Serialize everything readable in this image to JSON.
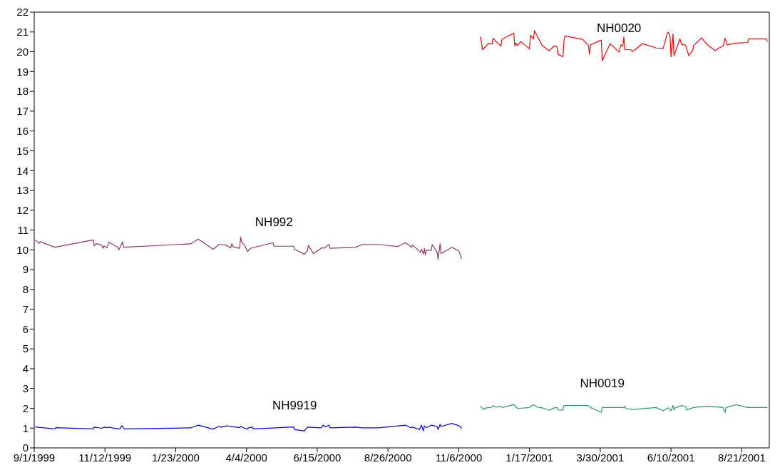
{
  "chart_data": {
    "type": "line",
    "xlim": [
      "1999-09-01",
      "2001-09-18"
    ],
    "xticks": [
      {
        "value": "1999-09-01",
        "label": "9/1/1999"
      },
      {
        "value": "1999-11-12",
        "label": "11/12/1999"
      },
      {
        "value": "2000-01-23",
        "label": "1/23/2000"
      },
      {
        "value": "2000-04-04",
        "label": "4/4/2000"
      },
      {
        "value": "2000-06-15",
        "label": "6/15/2000"
      },
      {
        "value": "2000-08-26",
        "label": "8/26/2000"
      },
      {
        "value": "2000-11-06",
        "label": "11/6/2000"
      },
      {
        "value": "2001-01-17",
        "label": "1/17/2001"
      },
      {
        "value": "2001-03-30",
        "label": "3/30/2001"
      },
      {
        "value": "2001-06-10",
        "label": "6/10/2001"
      },
      {
        "value": "2001-08-21",
        "label": "8/21/2001"
      }
    ],
    "ylim": [
      0,
      22
    ],
    "yticks": [
      0,
      1,
      2,
      3,
      4,
      5,
      6,
      7,
      8,
      9,
      10,
      11,
      12,
      13,
      14,
      15,
      16,
      17,
      18,
      19,
      20,
      21,
      22
    ],
    "grid": false,
    "legend": false,
    "marker": "none",
    "line_style": "solid",
    "series": [
      {
        "name": "NH992",
        "color": "#993366",
        "x": [
          "1999-09-02",
          "1999-09-06",
          "1999-09-07",
          "1999-09-22",
          "1999-10-31",
          "1999-11-01",
          "1999-11-03",
          "1999-11-08",
          "1999-11-10",
          "1999-11-11",
          "1999-11-14",
          "1999-11-16",
          "1999-11-25",
          "1999-11-26",
          "1999-11-30",
          "1999-12-01",
          "2000-02-07",
          "2000-02-15",
          "2000-02-23",
          "2000-03-01",
          "2000-03-07",
          "2000-03-14",
          "2000-03-19",
          "2000-03-20",
          "2000-03-22",
          "2000-03-28",
          "2000-03-29",
          "2000-03-30",
          "2000-04-02",
          "2000-04-05",
          "2000-04-08",
          "2000-04-10",
          "2000-05-01",
          "2000-05-02",
          "2000-05-22",
          "2000-05-23",
          "2000-06-02",
          "2000-06-05",
          "2000-06-06",
          "2000-06-11",
          "2000-06-20",
          "2000-06-22",
          "2000-06-27",
          "2000-06-28",
          "2000-07-24",
          "2000-07-31",
          "2000-08-16",
          "2000-09-05",
          "2000-09-13",
          "2000-09-19",
          "2000-09-20",
          "2000-09-28",
          "2000-09-29",
          "2000-10-01",
          "2000-10-02",
          "2000-10-03",
          "2000-10-04",
          "2000-10-09",
          "2000-10-10",
          "2000-10-15",
          "2000-10-16",
          "2000-10-18",
          "2000-10-19",
          "2000-10-30",
          "2000-11-06",
          "2000-11-09"
        ],
        "values": [
          10.5,
          10.33,
          10.41,
          10.13,
          10.5,
          10.2,
          10.31,
          10.26,
          10.08,
          10.2,
          10.1,
          10.39,
          10.13,
          9.99,
          10.4,
          10.13,
          10.3,
          10.54,
          10.27,
          10.03,
          10.27,
          10.24,
          10.1,
          10.31,
          10.13,
          10.08,
          10.65,
          10.39,
          10.24,
          9.92,
          10.07,
          10.1,
          10.36,
          10.18,
          10.18,
          10.03,
          9.78,
          9.95,
          10.23,
          9.81,
          10.11,
          10.08,
          10.27,
          10.08,
          10.13,
          10.27,
          10.27,
          10.17,
          10.36,
          10.13,
          10.24,
          9.88,
          10.03,
          9.78,
          10.07,
          9.74,
          9.98,
          9.98,
          10.27,
          9.88,
          9.52,
          10.31,
          9.81,
          10.13,
          9.95,
          9.55
        ]
      },
      {
        "name": "NH9919",
        "color": "#0000ff",
        "x": [
          "1999-09-02",
          "1999-09-22",
          "1999-09-23",
          "1999-10-31",
          "1999-11-01",
          "1999-11-09",
          "1999-11-11",
          "1999-11-14",
          "1999-11-15",
          "1999-11-27",
          "1999-11-29",
          "1999-12-02",
          "2000-02-07",
          "2000-02-15",
          "2000-03-01",
          "2000-03-07",
          "2000-03-09",
          "2000-03-15",
          "2000-03-28",
          "2000-03-29",
          "2000-04-01",
          "2000-04-04",
          "2000-04-07",
          "2000-04-10",
          "2000-04-11",
          "2000-05-22",
          "2000-05-23",
          "2000-06-02",
          "2000-06-05",
          "2000-06-19",
          "2000-06-21",
          "2000-06-23",
          "2000-06-27",
          "2000-06-28",
          "2000-07-24",
          "2000-07-31",
          "2000-08-16",
          "2000-09-13",
          "2000-09-18",
          "2000-09-20",
          "2000-09-27",
          "2000-09-29",
          "2000-10-01",
          "2000-10-02",
          "2000-10-04",
          "2000-10-09",
          "2000-10-15",
          "2000-10-16",
          "2000-10-18",
          "2000-10-19",
          "2000-10-30",
          "2000-11-06",
          "2000-11-09"
        ],
        "values": [
          1.06,
          0.96,
          1.02,
          0.96,
          1.05,
          0.99,
          1.05,
          1.02,
          1.05,
          0.95,
          1.12,
          0.96,
          1.01,
          1.15,
          0.95,
          1.09,
          1.05,
          1.11,
          1.02,
          1.09,
          1.02,
          0.95,
          1.03,
          1.05,
          0.96,
          1.06,
          0.92,
          0.86,
          1.05,
          1.01,
          1.15,
          1.06,
          1.15,
          1.01,
          1.05,
          1.01,
          1.01,
          1.15,
          1.02,
          1.05,
          0.93,
          1.15,
          0.86,
          1.11,
          1.02,
          1.15,
          1.08,
          0.93,
          1.19,
          1.08,
          1.24,
          1.12,
          0.99
        ]
      },
      {
        "name": "NH0020",
        "color": "#ff0000",
        "x": [
          "2000-11-28",
          "2000-11-29",
          "2000-11-30",
          "2000-12-04",
          "2000-12-06",
          "2000-12-10",
          "2000-12-11",
          "2000-12-14",
          "2000-12-19",
          "2000-12-20",
          "2001-01-01",
          "2001-01-02",
          "2001-01-03",
          "2001-01-05",
          "2001-01-08",
          "2001-01-17",
          "2001-01-18",
          "2001-01-21",
          "2001-01-22",
          "2001-01-30",
          "2001-02-06",
          "2001-02-11",
          "2001-02-14",
          "2001-02-15",
          "2001-02-20",
          "2001-02-21",
          "2001-02-22",
          "2001-03-12",
          "2001-03-18",
          "2001-03-19",
          "2001-03-20",
          "2001-03-31",
          "2001-04-01",
          "2001-04-09",
          "2001-04-18",
          "2001-04-20",
          "2001-04-22",
          "2001-04-23",
          "2001-04-24",
          "2001-04-30",
          "2001-05-02",
          "2001-05-12",
          "2001-05-26",
          "2001-06-02",
          "2001-06-06",
          "2001-06-07",
          "2001-06-09",
          "2001-06-10",
          "2001-06-12",
          "2001-06-13",
          "2001-06-19",
          "2001-06-21",
          "2001-06-23",
          "2001-06-25",
          "2001-06-28",
          "2001-07-02",
          "2001-07-03",
          "2001-07-11",
          "2001-07-17",
          "2001-07-25",
          "2001-07-28",
          "2001-08-02",
          "2001-08-04",
          "2001-08-06",
          "2001-08-15",
          "2001-08-27",
          "2001-08-28",
          "2001-09-15",
          "2001-09-16"
        ],
        "values": [
          20.75,
          20.51,
          20.11,
          20.29,
          20.41,
          20.39,
          20.69,
          20.51,
          20.29,
          20.63,
          20.94,
          20.29,
          20.44,
          20.31,
          20.51,
          20.15,
          20.83,
          20.65,
          21.06,
          20.31,
          20.05,
          20.29,
          20.27,
          19.87,
          19.75,
          20.53,
          20.8,
          20.63,
          20.31,
          19.87,
          20.35,
          20.59,
          19.55,
          20.41,
          19.99,
          20.35,
          20.29,
          20.75,
          20.11,
          20.1,
          20.01,
          20.41,
          20.19,
          20.17,
          20.89,
          20.99,
          20.8,
          19.75,
          20.89,
          19.79,
          20.65,
          20.35,
          20.39,
          20.29,
          19.81,
          20.05,
          20.31,
          20.71,
          20.35,
          20.05,
          20.17,
          20.29,
          20.69,
          20.35,
          20.44,
          20.47,
          20.65,
          20.65,
          20.51
        ]
      },
      {
        "name": "NH0019",
        "color": "#339966",
        "x": [
          "2000-11-28",
          "2000-12-01",
          "2000-12-04",
          "2000-12-10",
          "2000-12-11",
          "2000-12-14",
          "2000-12-19",
          "2000-12-20",
          "2001-01-01",
          "2001-01-05",
          "2001-01-17",
          "2001-01-21",
          "2001-01-25",
          "2001-01-30",
          "2001-02-06",
          "2001-02-11",
          "2001-02-14",
          "2001-02-15",
          "2001-02-20",
          "2001-02-21",
          "2001-03-18",
          "2001-03-20",
          "2001-03-31",
          "2001-04-01",
          "2001-04-23",
          "2001-04-24",
          "2001-04-25",
          "2001-05-02",
          "2001-05-26",
          "2001-06-02",
          "2001-06-07",
          "2001-06-10",
          "2001-06-12",
          "2001-06-13",
          "2001-06-14",
          "2001-06-21",
          "2001-06-25",
          "2001-06-26",
          "2001-07-03",
          "2001-07-17",
          "2001-08-02",
          "2001-08-04",
          "2001-08-05",
          "2001-08-15",
          "2001-08-27",
          "2001-09-16"
        ],
        "values": [
          2.11,
          1.94,
          2.02,
          2.06,
          2.14,
          2.06,
          2.09,
          2.04,
          2.18,
          1.99,
          2.04,
          2.18,
          2.06,
          2.02,
          1.9,
          2.02,
          2.04,
          1.92,
          1.9,
          2.14,
          2.14,
          2.04,
          1.8,
          2.04,
          2.04,
          2.11,
          1.99,
          1.94,
          2.04,
          1.87,
          2.02,
          1.87,
          2.14,
          1.92,
          2.02,
          2.14,
          2.08,
          1.92,
          2.04,
          2.11,
          2.04,
          1.78,
          2.04,
          2.18,
          2.04,
          2.04
        ]
      }
    ]
  }
}
